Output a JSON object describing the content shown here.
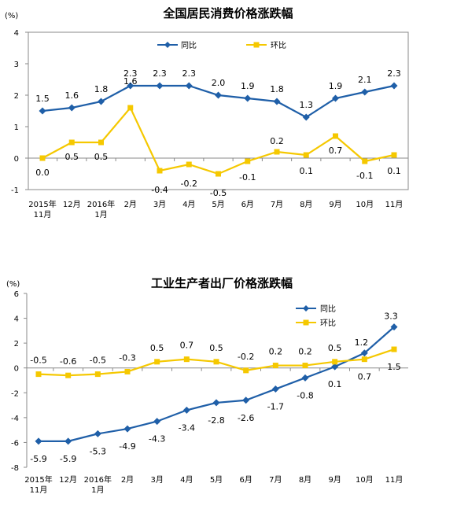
{
  "chart_data": [
    {
      "type": "line",
      "title": "全国居民消费价格涨跌幅",
      "unit_label": "(%)",
      "categories": [
        [
          "2015年",
          "11月"
        ],
        [
          "12月"
        ],
        [
          "2016年",
          "1月"
        ],
        [
          "2月"
        ],
        [
          "3月"
        ],
        [
          "4月"
        ],
        [
          "5月"
        ],
        [
          "6月"
        ],
        [
          "7月"
        ],
        [
          "8月"
        ],
        [
          "9月"
        ],
        [
          "10月"
        ],
        [
          "11月"
        ]
      ],
      "ylim": [
        -1,
        4
      ],
      "yticks": [
        -1,
        0,
        1,
        2,
        3,
        4
      ],
      "series": [
        {
          "name": "同比",
          "color": "#1f5fa8",
          "marker": "diamond",
          "values": [
            1.5,
            1.6,
            1.8,
            2.3,
            2.3,
            2.3,
            2.0,
            1.9,
            1.8,
            1.3,
            1.9,
            2.1,
            2.3
          ],
          "labels": [
            "1.5",
            "1.6",
            "1.8",
            "2.3",
            "2.3",
            "2.3",
            "2.0",
            "1.9",
            "1.8",
            "1.3",
            "1.9",
            "2.1",
            "2.3"
          ]
        },
        {
          "name": "环比",
          "color": "#f5c800",
          "marker": "square",
          "values": [
            0.0,
            0.5,
            0.5,
            1.6,
            -0.4,
            -0.2,
            -0.5,
            -0.1,
            0.2,
            0.1,
            0.7,
            -0.1,
            0.1
          ],
          "labels": [
            "0.0",
            "0.5",
            "0.5",
            "1.6",
            "-0.4",
            "-0.2",
            "-0.5",
            "-0.1",
            "0.2",
            "0.1",
            "0.7",
            "-0.1",
            "0.1"
          ]
        }
      ],
      "legend": "top"
    },
    {
      "type": "line",
      "title": "工业生产者出厂价格涨跌幅",
      "unit_label": "(%)",
      "categories": [
        [
          "2015年",
          "11月"
        ],
        [
          "12月"
        ],
        [
          "2016年",
          "1月"
        ],
        [
          "2月"
        ],
        [
          "3月"
        ],
        [
          "4月"
        ],
        [
          "5月"
        ],
        [
          "6月"
        ],
        [
          "7月"
        ],
        [
          "8月"
        ],
        [
          "9月"
        ],
        [
          "10月"
        ],
        [
          "11月"
        ]
      ],
      "ylim": [
        -8,
        6
      ],
      "yticks": [
        -8,
        -6,
        -4,
        -2,
        0,
        2,
        4,
        6
      ],
      "series": [
        {
          "name": "同比",
          "color": "#1f5fa8",
          "marker": "diamond",
          "values": [
            -5.9,
            -5.9,
            -5.3,
            -4.9,
            -4.3,
            -3.4,
            -2.8,
            -2.6,
            -1.7,
            -0.8,
            0.1,
            1.2,
            3.3
          ],
          "labels": [
            "-5.9",
            "-5.9",
            "-5.3",
            "-4.9",
            "-4.3",
            "-3.4",
            "-2.8",
            "-2.6",
            "-1.7",
            "-0.8",
            "0.1",
            "1.2",
            "3.3"
          ]
        },
        {
          "name": "环比",
          "color": "#f5c800",
          "marker": "square",
          "values": [
            -0.5,
            -0.6,
            -0.5,
            -0.3,
            0.5,
            0.7,
            0.5,
            -0.2,
            0.2,
            0.2,
            0.5,
            0.7,
            1.5
          ],
          "labels": [
            "-0.5",
            "-0.6",
            "-0.5",
            "-0.3",
            "0.5",
            "0.7",
            "0.5",
            "-0.2",
            "0.2",
            "0.2",
            "0.5",
            "0.7",
            "1.5"
          ]
        }
      ],
      "legend": "top-right"
    }
  ]
}
